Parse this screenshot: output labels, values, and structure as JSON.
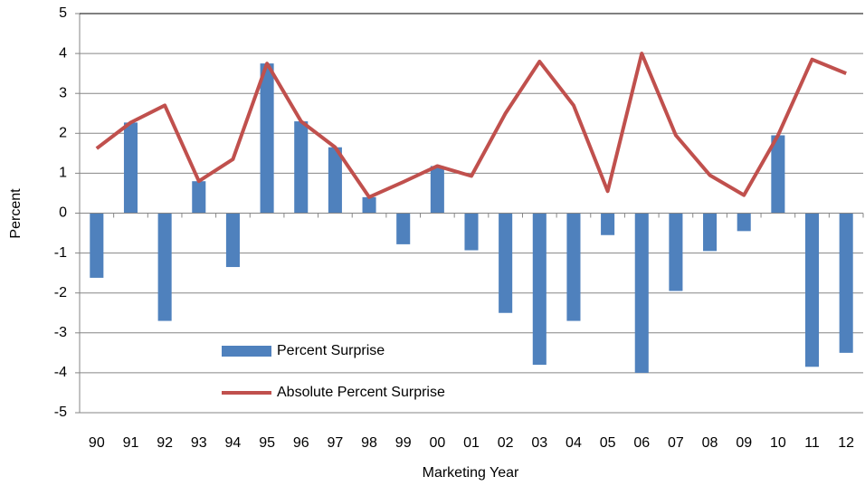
{
  "chart_data": {
    "type": "combo",
    "x_label": "Marketing Year",
    "y_label": "Percent",
    "categories": [
      "90",
      "91",
      "92",
      "93",
      "94",
      "95",
      "96",
      "97",
      "98",
      "99",
      "00",
      "01",
      "02",
      "03",
      "04",
      "05",
      "06",
      "07",
      "08",
      "09",
      "10",
      "11",
      "12"
    ],
    "series": [
      {
        "name": "Percent Surprise",
        "type": "bar",
        "color": "#4f81bd",
        "values": [
          -1.62,
          2.27,
          -2.7,
          0.8,
          -1.35,
          3.75,
          2.3,
          1.65,
          0.4,
          -0.78,
          1.18,
          -0.93,
          -2.5,
          -3.8,
          -2.7,
          -0.55,
          -4.0,
          -1.95,
          -0.95,
          -0.45,
          1.95,
          -3.85,
          -3.5
        ]
      },
      {
        "name": "Absolute Percent Surprise",
        "type": "line",
        "color": "#c0504d",
        "values": [
          1.62,
          2.27,
          2.7,
          0.8,
          1.35,
          3.75,
          2.3,
          1.65,
          0.4,
          0.78,
          1.18,
          0.93,
          2.5,
          3.8,
          2.7,
          0.55,
          4.0,
          1.95,
          0.95,
          0.45,
          1.95,
          3.85,
          3.5
        ]
      }
    ],
    "ylim": [
      -5,
      5
    ],
    "yticks": [
      -5,
      -4,
      -3,
      -2,
      -1,
      0,
      1,
      2,
      3,
      4,
      5
    ],
    "grid": true,
    "legend": "lower left"
  }
}
